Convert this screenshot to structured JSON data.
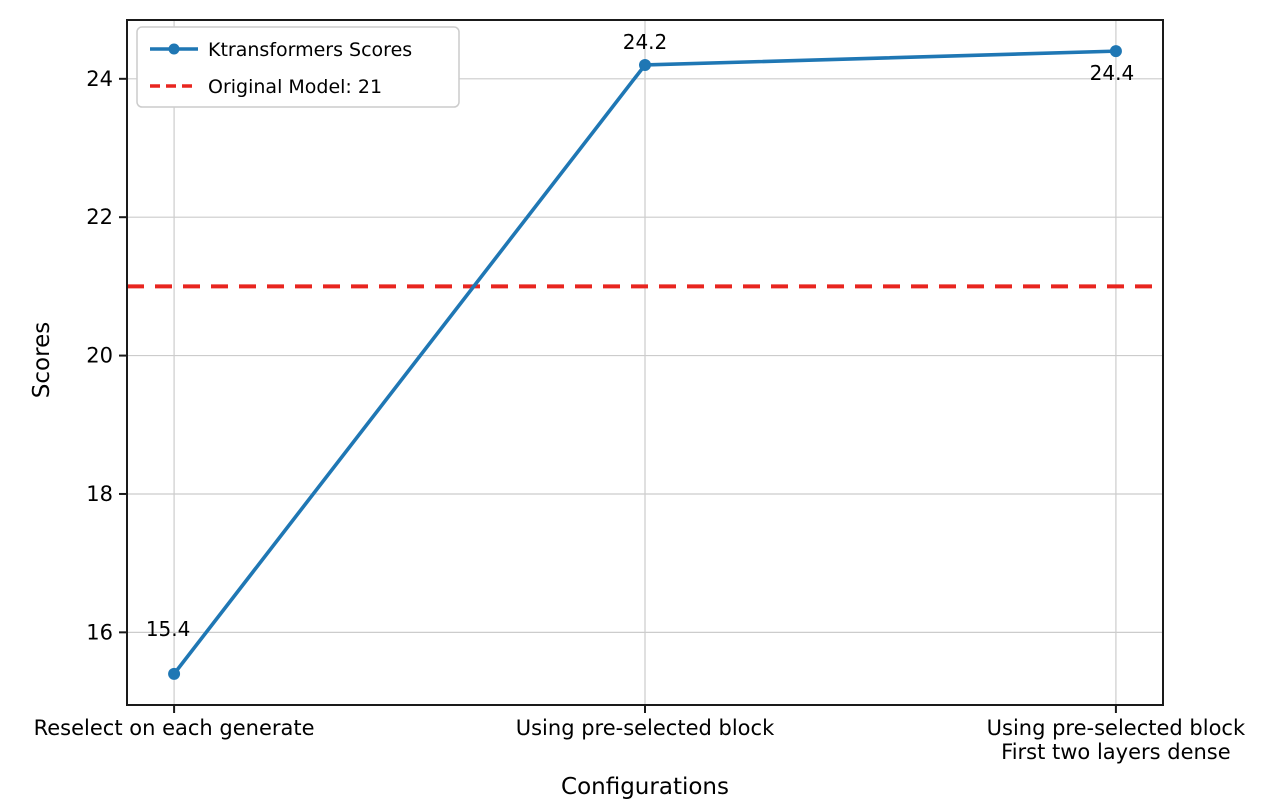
{
  "chart_data": {
    "type": "line",
    "categories": [
      "Reselect on each generate",
      "Using pre-selected block",
      "Using pre-selected block\nFirst two layers dense"
    ],
    "series": [
      {
        "name": "Ktransformers Scores",
        "values": [
          15.4,
          24.2,
          24.4
        ],
        "color": "#1f77b4"
      }
    ],
    "reference_line": {
      "label": "Original Model: 21",
      "value": 21,
      "color": "#e8251f",
      "style": "dashed"
    },
    "annotations": [
      "15.4",
      "24.2",
      "24.4"
    ],
    "xlabel": "Configurations",
    "ylabel": "Scores",
    "yticks": [
      16,
      18,
      20,
      22,
      24
    ],
    "ylim": [
      14.95,
      24.85
    ],
    "xlim": [
      -0.1,
      2.1
    ],
    "grid": true,
    "grid_color": "#cccccc",
    "spine_color": "#1a1a1a",
    "legend_position": "upper left"
  }
}
